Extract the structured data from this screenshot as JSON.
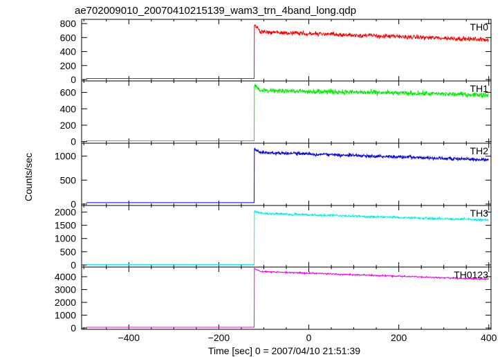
{
  "chart_data": {
    "type": "line",
    "title": "ae702009010_20070410215139_wam3_trn_4band_long.qdp",
    "xlabel": "Time [sec] 0 = 2007/04/10 21:51:39",
    "ylabel": "Counts/sec",
    "xlim": [
      -505,
      405
    ],
    "x_ticks": [
      -400,
      -200,
      0,
      200,
      400
    ],
    "x_tick_labels": [
      "−400",
      "−200",
      "0",
      "200",
      "400"
    ],
    "trigger_time": -122,
    "panels": [
      {
        "name": "TH0",
        "color": "#ff0000",
        "ylim": [
          -20,
          860
        ],
        "yticks": [
          0,
          200,
          400,
          600,
          800
        ],
        "before_level": 15,
        "peak": 790,
        "level_after_peak": 680,
        "end_level": 570,
        "noise": 30,
        "x_start": -495,
        "x_end": 400
      },
      {
        "name": "TH1",
        "color": "#00ee00",
        "ylim": [
          -20,
          740
        ],
        "yticks": [
          0,
          200,
          400,
          600
        ],
        "before_level": 10,
        "peak": 700,
        "level_after_peak": 625,
        "end_level": 570,
        "noise": 30,
        "x_start": -495,
        "x_end": 400
      },
      {
        "name": "TH2",
        "color": "#0000dd",
        "ylim": [
          -30,
          1270
        ],
        "yticks": [
          0,
          500,
          1000
        ],
        "before_level": 30,
        "peak": 1150,
        "level_after_peak": 1080,
        "end_level": 920,
        "noise": 35,
        "x_start": -495,
        "x_end": 400
      },
      {
        "name": "TH3",
        "color": "#00eeee",
        "ylim": [
          -80,
          2250
        ],
        "yticks": [
          0,
          500,
          1000,
          1500,
          2000
        ],
        "before_level": 10,
        "peak": 2050,
        "level_after_peak": 1950,
        "end_level": 1700,
        "noise": 45,
        "x_start": -495,
        "x_end": 400
      },
      {
        "name": "TH0123",
        "color": "#ee00ee",
        "ylim": [
          -100,
          4750
        ],
        "yticks": [
          0,
          1000,
          2000,
          3000,
          4000
        ],
        "before_level": 60,
        "peak": 4650,
        "level_after_peak": 4400,
        "end_level": 3800,
        "noise": 60,
        "x_start": -495,
        "x_end": 400
      }
    ]
  }
}
